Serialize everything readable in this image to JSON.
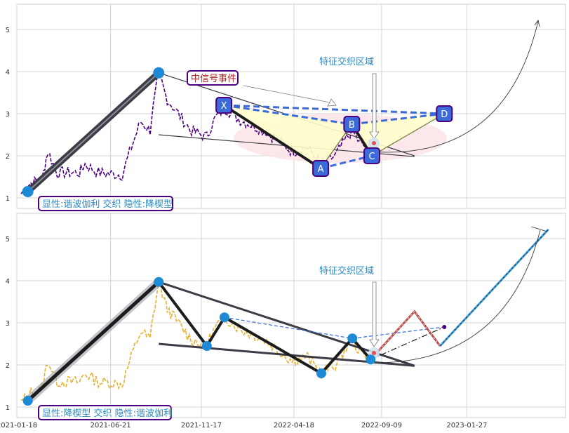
{
  "chart_data": [
    {
      "type": "line",
      "panel": "top",
      "ylim": [
        0.75,
        5.6
      ],
      "yticks": [
        1,
        2,
        3,
        4,
        5
      ],
      "grid": true,
      "main_series_color": "#4b0082",
      "labels": {
        "pattern_label": "显性:谐波伽利 交织 隐性:降楔型",
        "signal_label": "中信号事件",
        "zone_label": "特征交织区域",
        "points": [
          "X",
          "A",
          "B",
          "C",
          "D"
        ]
      },
      "pivots": [
        {
          "name": "X",
          "date": "2021-12-24",
          "value": 3.2
        },
        {
          "name": "A",
          "date": "2022-06-01",
          "value": 1.7
        },
        {
          "name": "B",
          "date": "2022-07-22",
          "value": 2.75
        },
        {
          "name": "C",
          "date": "2022-08-24",
          "value": 2.0
        },
        {
          "name": "D",
          "date": "2022-12-21",
          "value": 3.0
        }
      ],
      "impulse": [
        {
          "date": "2021-02-05",
          "value": 1.15
        },
        {
          "date": "2021-09-08",
          "value": 3.97
        }
      ],
      "colors": {
        "label_border": "#4b0082",
        "label_text": "#2e8bc0",
        "signal_text": "#b22222",
        "point_fill": "#3a6bd8",
        "dash_line": "#3a6bd8",
        "triangle_fill": "#ffffcc"
      }
    },
    {
      "type": "line",
      "panel": "bottom",
      "ylim": [
        0.75,
        5.6
      ],
      "yticks": [
        1,
        2,
        3,
        4,
        5
      ],
      "grid": true,
      "main_series_color": "#e8b030",
      "x_ticks": [
        "2021-01-18",
        "2021-06-21",
        "2021-11-17",
        "2022-04-18",
        "2022-09-09",
        "2023-01-27"
      ],
      "labels": {
        "pattern_label": "显性:降楔型 交织 隐性:谐波伽利",
        "zone_label": "特征交织区域"
      },
      "pivots": [
        {
          "date": "2021-02-05",
          "value": 1.15
        },
        {
          "date": "2021-09-08",
          "value": 3.97
        },
        {
          "date": "2021-11-26",
          "value": 2.45
        },
        {
          "date": "2021-12-25",
          "value": 3.13
        },
        {
          "date": "2022-06-02",
          "value": 1.8
        },
        {
          "date": "2022-07-23",
          "value": 2.63
        },
        {
          "date": "2022-08-22",
          "value": 2.13
        }
      ],
      "projection": [
        {
          "date": "2022-08-22",
          "value": 2.13
        },
        {
          "date": "2022-11-02",
          "value": 3.27
        },
        {
          "date": "2022-12-14",
          "value": 2.45
        },
        {
          "date": "2023-06-10",
          "value": 5.22
        }
      ],
      "colors": {
        "label_border": "#4b0082",
        "label_text": "#2e8bc0",
        "pivot_fill": "#1e8ad6",
        "wedge_line": "#3c3c46",
        "projection_up": "#b94a4a",
        "projection_final": "#3a9ad9"
      }
    }
  ]
}
